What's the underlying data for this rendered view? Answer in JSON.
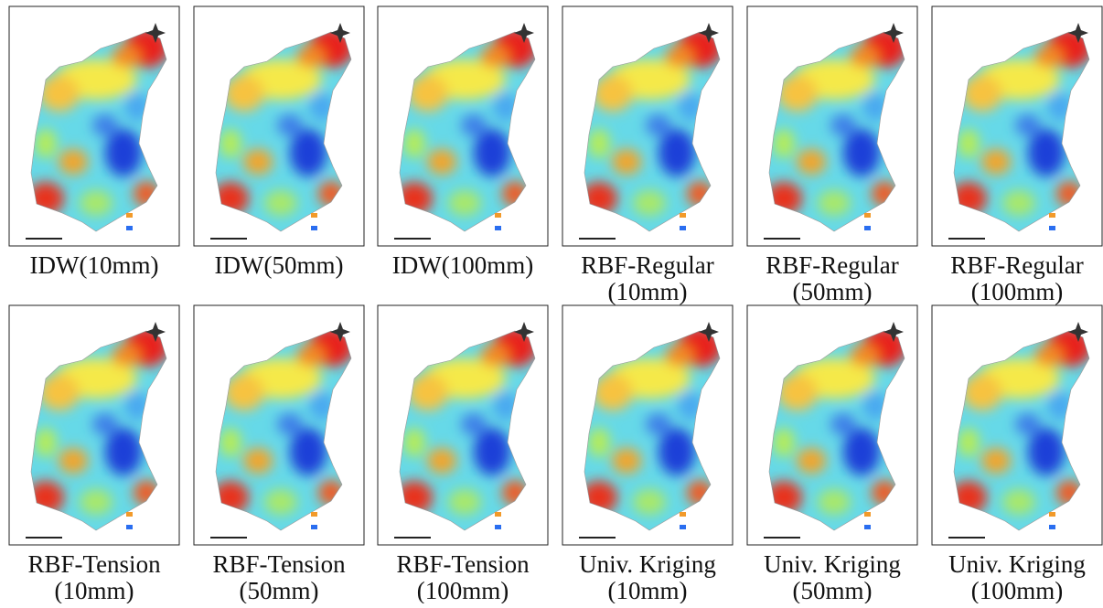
{
  "panels": [
    {
      "caption": [
        "IDW(10mm)"
      ]
    },
    {
      "caption": [
        "IDW(50mm)"
      ]
    },
    {
      "caption": [
        "IDW(100mm)"
      ]
    },
    {
      "caption": [
        "RBF-Regular",
        "(10mm)"
      ]
    },
    {
      "caption": [
        "RBF-Regular",
        "(50mm)"
      ]
    },
    {
      "caption": [
        "RBF-Regular",
        "(100mm)"
      ]
    },
    {
      "caption": [
        "RBF-Tension",
        "(10mm)"
      ]
    },
    {
      "caption": [
        "RBF-Tension",
        "(50mm)"
      ]
    },
    {
      "caption": [
        "RBF-Tension",
        "(100mm)"
      ]
    },
    {
      "caption": [
        "Univ. Kriging",
        "(10mm)"
      ]
    },
    {
      "caption": [
        "Univ. Kriging",
        "(50mm)"
      ]
    },
    {
      "caption": [
        "Univ. Kriging",
        "(100mm)"
      ]
    }
  ]
}
